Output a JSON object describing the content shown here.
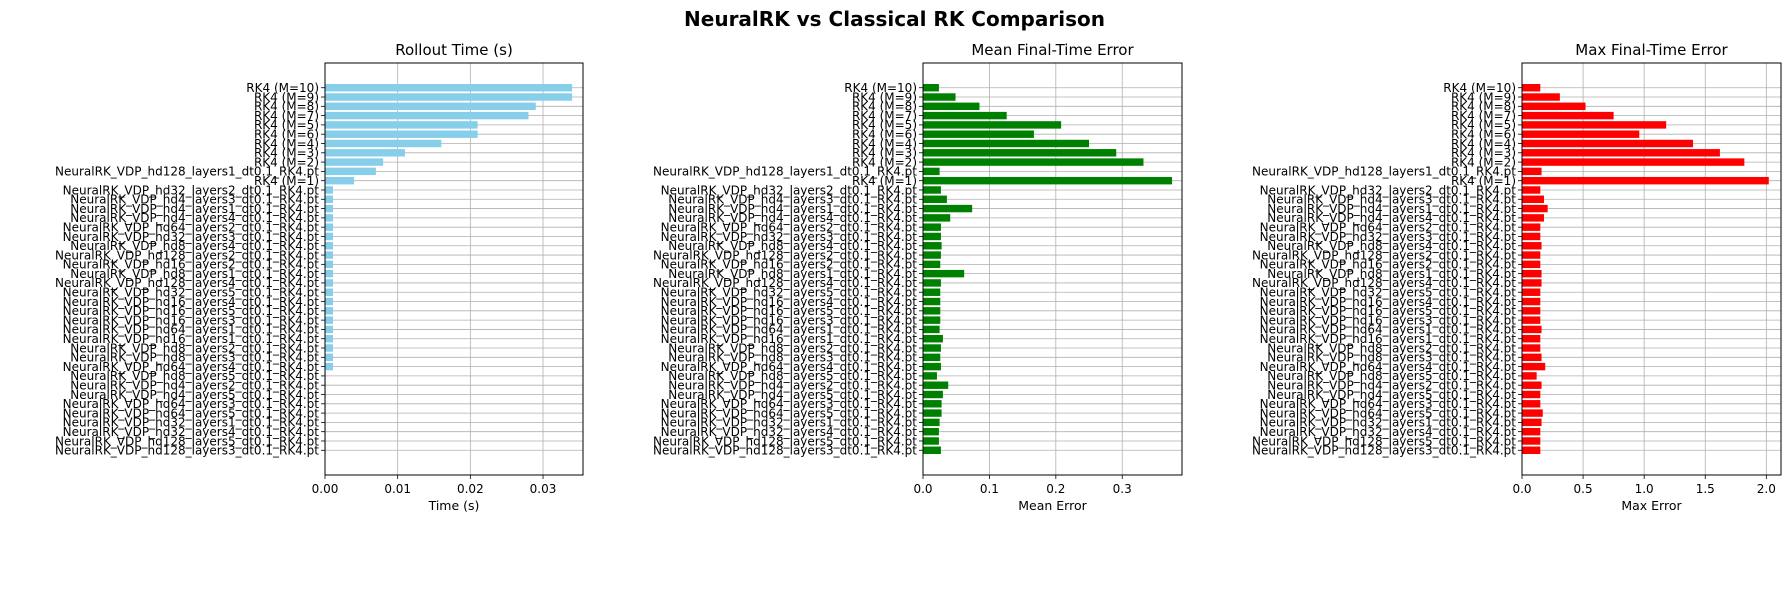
{
  "figure": {
    "title": "NeuralRK vs Classical RK Comparison"
  },
  "chart_data": [
    {
      "type": "bar",
      "orientation": "horizontal",
      "title": "Rollout Time (s)",
      "xlabel": "Time (s)",
      "ylabel": "",
      "xlim": [
        0,
        0.0355
      ],
      "xticks": [
        "0.00",
        "0.01",
        "0.02",
        "0.03"
      ],
      "grid": true,
      "color": "#87CEEB",
      "categories": [
        "RK4 (M=10)",
        "RK4 (M=9)",
        "RK4 (M=8)",
        "RK4 (M=7)",
        "RK4 (M=5)",
        "RK4 (M=6)",
        "RK4 (M=4)",
        "RK4 (M=3)",
        "RK4 (M=2)",
        "NeuralRK_VDP_hd128_layers1_dt0.1_RK4.pt",
        "RK4 (M=1)",
        "NeuralRK_VDP_hd32_layers2_dt0.1_RK4.pt",
        "NeuralRK_VDP_hd4_layers3_dt0.1_RK4.pt",
        "NeuralRK_VDP_hd4_layers1_dt0.1_RK4.pt",
        "NeuralRK_VDP_hd4_layers4_dt0.1_RK4.pt",
        "NeuralRK_VDP_hd64_layers2_dt0.1_RK4.pt",
        "NeuralRK_VDP_hd32_layers3_dt0.1_RK4.pt",
        "NeuralRK_VDP_hd8_layers4_dt0.1_RK4.pt",
        "NeuralRK_VDP_hd128_layers2_dt0.1_RK4.pt",
        "NeuralRK_VDP_hd16_layers2_dt0.1_RK4.pt",
        "NeuralRK_VDP_hd8_layers1_dt0.1_RK4.pt",
        "NeuralRK_VDP_hd128_layers4_dt0.1_RK4.pt",
        "NeuralRK_VDP_hd32_layers5_dt0.1_RK4.pt",
        "NeuralRK_VDP_hd16_layers4_dt0.1_RK4.pt",
        "NeuralRK_VDP_hd16_layers5_dt0.1_RK4.pt",
        "NeuralRK_VDP_hd16_layers3_dt0.1_RK4.pt",
        "NeuralRK_VDP_hd64_layers1_dt0.1_RK4.pt",
        "NeuralRK_VDP_hd16_layers1_dt0.1_RK4.pt",
        "NeuralRK_VDP_hd8_layers2_dt0.1_RK4.pt",
        "NeuralRK_VDP_hd8_layers3_dt0.1_RK4.pt",
        "NeuralRK_VDP_hd64_layers4_dt0.1_RK4.pt",
        "NeuralRK_VDP_hd8_layers5_dt0.1_RK4.pt",
        "NeuralRK_VDP_hd4_layers2_dt0.1_RK4.pt",
        "NeuralRK_VDP_hd4_layers5_dt0.1_RK4.pt",
        "NeuralRK_VDP_hd64_layers3_dt0.1_RK4.pt",
        "NeuralRK_VDP_hd64_layers5_dt0.1_RK4.pt",
        "NeuralRK_VDP_hd32_layers1_dt0.1_RK4.pt",
        "NeuralRK_VDP_hd32_layers4_dt0.1_RK4.pt",
        "NeuralRK_VDP_hd128_layers5_dt0.1_RK4.pt",
        "NeuralRK_VDP_hd128_layers3_dt0.1_RK4.pt"
      ],
      "values": [
        0.034,
        0.034,
        0.029,
        0.028,
        0.021,
        0.021,
        0.016,
        0.011,
        0.008,
        0.007,
        0.004,
        0.0011,
        0.0011,
        0.0011,
        0.0011,
        0.0011,
        0.0011,
        0.0011,
        0.0011,
        0.0011,
        0.0011,
        0.0011,
        0.0011,
        0.0011,
        0.0011,
        0.0011,
        0.0011,
        0.0011,
        0.0011,
        0.0011,
        0.0011,
        0.0001,
        0.0001,
        0.0001,
        0.0001,
        0.0001,
        0.0001,
        0.0001,
        0.0001,
        0.0001
      ]
    },
    {
      "type": "bar",
      "orientation": "horizontal",
      "title": "Mean Final-Time Error",
      "xlabel": "Mean Error",
      "ylabel": "",
      "xlim": [
        0,
        0.39
      ],
      "xticks": [
        "0.0",
        "0.1",
        "0.2",
        "0.3"
      ],
      "grid": true,
      "color": "#008000",
      "categories": [
        "RK4 (M=10)",
        "RK4 (M=9)",
        "RK4 (M=8)",
        "RK4 (M=7)",
        "RK4 (M=5)",
        "RK4 (M=6)",
        "RK4 (M=4)",
        "RK4 (M=3)",
        "RK4 (M=2)",
        "NeuralRK_VDP_hd128_layers1_dt0.1_RK4.pt",
        "RK4 (M=1)",
        "NeuralRK_VDP_hd32_layers2_dt0.1_RK4.pt",
        "NeuralRK_VDP_hd4_layers3_dt0.1_RK4.pt",
        "NeuralRK_VDP_hd4_layers1_dt0.1_RK4.pt",
        "NeuralRK_VDP_hd4_layers4_dt0.1_RK4.pt",
        "NeuralRK_VDP_hd64_layers2_dt0.1_RK4.pt",
        "NeuralRK_VDP_hd32_layers3_dt0.1_RK4.pt",
        "NeuralRK_VDP_hd8_layers4_dt0.1_RK4.pt",
        "NeuralRK_VDP_hd128_layers2_dt0.1_RK4.pt",
        "NeuralRK_VDP_hd16_layers2_dt0.1_RK4.pt",
        "NeuralRK_VDP_hd8_layers1_dt0.1_RK4.pt",
        "NeuralRK_VDP_hd128_layers4_dt0.1_RK4.pt",
        "NeuralRK_VDP_hd32_layers5_dt0.1_RK4.pt",
        "NeuralRK_VDP_hd16_layers4_dt0.1_RK4.pt",
        "NeuralRK_VDP_hd16_layers5_dt0.1_RK4.pt",
        "NeuralRK_VDP_hd16_layers3_dt0.1_RK4.pt",
        "NeuralRK_VDP_hd64_layers1_dt0.1_RK4.pt",
        "NeuralRK_VDP_hd16_layers1_dt0.1_RK4.pt",
        "NeuralRK_VDP_hd8_layers2_dt0.1_RK4.pt",
        "NeuralRK_VDP_hd8_layers3_dt0.1_RK4.pt",
        "NeuralRK_VDP_hd64_layers4_dt0.1_RK4.pt",
        "NeuralRK_VDP_hd8_layers5_dt0.1_RK4.pt",
        "NeuralRK_VDP_hd4_layers2_dt0.1_RK4.pt",
        "NeuralRK_VDP_hd4_layers5_dt0.1_RK4.pt",
        "NeuralRK_VDP_hd64_layers3_dt0.1_RK4.pt",
        "NeuralRK_VDP_hd64_layers5_dt0.1_RK4.pt",
        "NeuralRK_VDP_hd32_layers1_dt0.1_RK4.pt",
        "NeuralRK_VDP_hd32_layers4_dt0.1_RK4.pt",
        "NeuralRK_VDP_hd128_layers5_dt0.1_RK4.pt",
        "NeuralRK_VDP_hd128_layers3_dt0.1_RK4.pt"
      ],
      "values": [
        0.024,
        0.049,
        0.085,
        0.126,
        0.208,
        0.167,
        0.25,
        0.291,
        0.332,
        0.025,
        0.375,
        0.027,
        0.036,
        0.074,
        0.041,
        0.027,
        0.027,
        0.028,
        0.027,
        0.026,
        0.062,
        0.027,
        0.026,
        0.026,
        0.026,
        0.026,
        0.025,
        0.03,
        0.027,
        0.026,
        0.027,
        0.021,
        0.038,
        0.03,
        0.028,
        0.028,
        0.025,
        0.024,
        0.024,
        0.027
      ]
    },
    {
      "type": "bar",
      "orientation": "horizontal",
      "title": "Max Final-Time Error",
      "xlabel": "Max Error",
      "ylabel": "",
      "xlim": [
        0,
        2.12
      ],
      "xticks": [
        "0.0",
        "0.5",
        "1.0",
        "1.5",
        "2.0"
      ],
      "grid": true,
      "color": "#FF0000",
      "categories": [
        "RK4 (M=10)",
        "RK4 (M=9)",
        "RK4 (M=8)",
        "RK4 (M=7)",
        "RK4 (M=5)",
        "RK4 (M=6)",
        "RK4 (M=4)",
        "RK4 (M=3)",
        "RK4 (M=2)",
        "NeuralRK_VDP_hd128_layers1_dt0.1_RK4.pt",
        "RK4 (M=1)",
        "NeuralRK_VDP_hd32_layers2_dt0.1_RK4.pt",
        "NeuralRK_VDP_hd4_layers3_dt0.1_RK4.pt",
        "NeuralRK_VDP_hd4_layers1_dt0.1_RK4.pt",
        "NeuralRK_VDP_hd4_layers4_dt0.1_RK4.pt",
        "NeuralRK_VDP_hd64_layers2_dt0.1_RK4.pt",
        "NeuralRK_VDP_hd32_layers3_dt0.1_RK4.pt",
        "NeuralRK_VDP_hd8_layers4_dt0.1_RK4.pt",
        "NeuralRK_VDP_hd128_layers2_dt0.1_RK4.pt",
        "NeuralRK_VDP_hd16_layers2_dt0.1_RK4.pt",
        "NeuralRK_VDP_hd8_layers1_dt0.1_RK4.pt",
        "NeuralRK_VDP_hd128_layers4_dt0.1_RK4.pt",
        "NeuralRK_VDP_hd32_layers5_dt0.1_RK4.pt",
        "NeuralRK_VDP_hd16_layers4_dt0.1_RK4.pt",
        "NeuralRK_VDP_hd16_layers5_dt0.1_RK4.pt",
        "NeuralRK_VDP_hd16_layers3_dt0.1_RK4.pt",
        "NeuralRK_VDP_hd64_layers1_dt0.1_RK4.pt",
        "NeuralRK_VDP_hd16_layers1_dt0.1_RK4.pt",
        "NeuralRK_VDP_hd8_layers2_dt0.1_RK4.pt",
        "NeuralRK_VDP_hd8_layers3_dt0.1_RK4.pt",
        "NeuralRK_VDP_hd64_layers4_dt0.1_RK4.pt",
        "NeuralRK_VDP_hd8_layers5_dt0.1_RK4.pt",
        "NeuralRK_VDP_hd4_layers2_dt0.1_RK4.pt",
        "NeuralRK_VDP_hd4_layers5_dt0.1_RK4.pt",
        "NeuralRK_VDP_hd64_layers3_dt0.1_RK4.pt",
        "NeuralRK_VDP_hd64_layers5_dt0.1_RK4.pt",
        "NeuralRK_VDP_hd32_layers1_dt0.1_RK4.pt",
        "NeuralRK_VDP_hd32_layers4_dt0.1_RK4.pt",
        "NeuralRK_VDP_hd128_layers5_dt0.1_RK4.pt",
        "NeuralRK_VDP_hd128_layers3_dt0.1_RK4.pt"
      ],
      "values": [
        0.15,
        0.31,
        0.52,
        0.75,
        1.18,
        0.96,
        1.4,
        1.62,
        1.82,
        0.16,
        2.02,
        0.15,
        0.18,
        0.21,
        0.18,
        0.15,
        0.15,
        0.16,
        0.15,
        0.15,
        0.16,
        0.16,
        0.15,
        0.15,
        0.15,
        0.15,
        0.16,
        0.15,
        0.15,
        0.16,
        0.19,
        0.12,
        0.16,
        0.15,
        0.15,
        0.17,
        0.16,
        0.15,
        0.15,
        0.15
      ]
    }
  ]
}
